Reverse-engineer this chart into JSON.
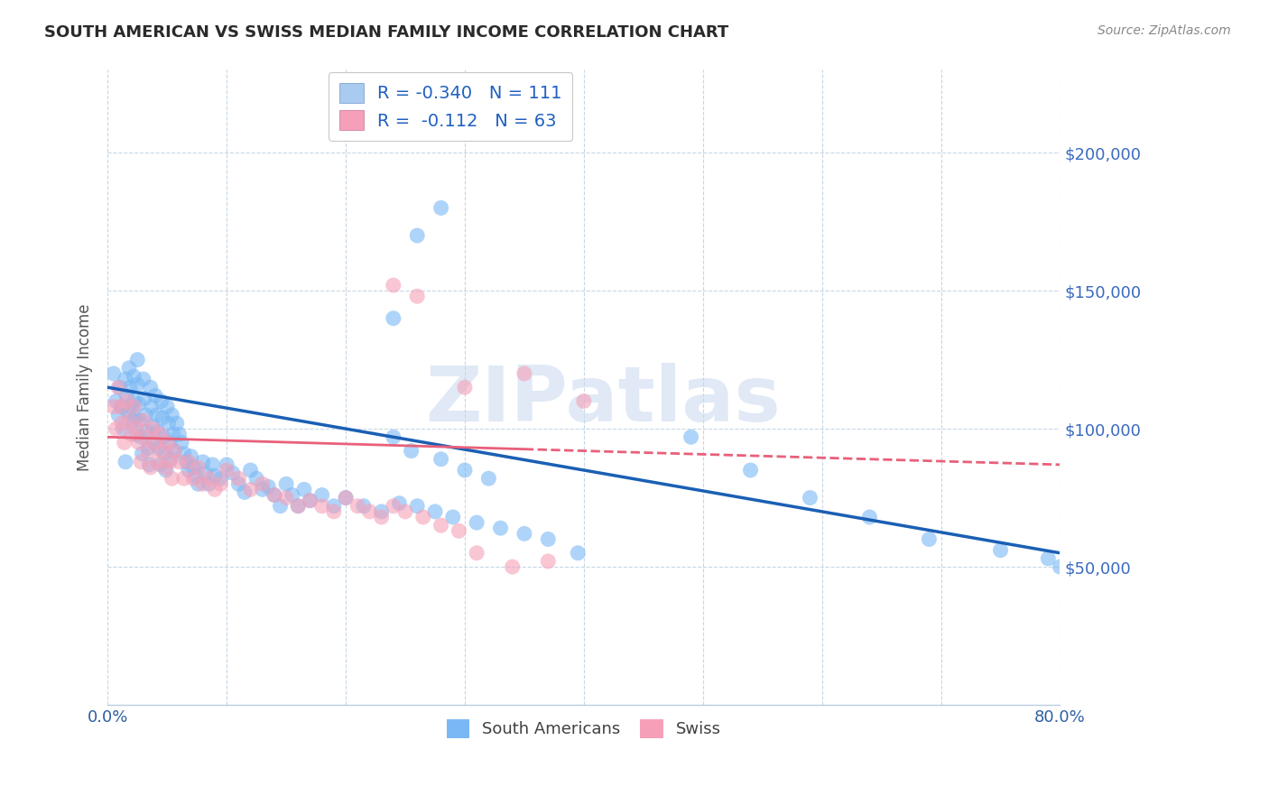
{
  "title": "SOUTH AMERICAN VS SWISS MEDIAN FAMILY INCOME CORRELATION CHART",
  "source": "Source: ZipAtlas.com",
  "ylabel": "Median Family Income",
  "watermark": "ZIPatlas",
  "group1_label": "South Americans",
  "group2_label": "Swiss",
  "group1_color": "#7ab8f5",
  "group2_color": "#f5a0b8",
  "trend1_color": "#1a5fb4",
  "trend2_color": "#e8607a",
  "background_color": "#ffffff",
  "xlim": [
    0.0,
    0.8
  ],
  "ylim": [
    0,
    230000
  ],
  "yticks": [
    50000,
    100000,
    150000,
    200000
  ],
  "ytick_labels": [
    "$50,000",
    "$100,000",
    "$150,000",
    "$200,000"
  ],
  "xtick_labels_show": [
    "0.0%",
    "80.0%"
  ],
  "legend1_label": "R = -0.340   N = 111",
  "legend2_label": "R =  -0.112   N = 63",
  "legend1_color": "#aacbf0",
  "legend2_color": "#f5a0b8",
  "trend1_y0": 115000,
  "trend1_y1": 55000,
  "trend2_y0": 97000,
  "trend2_y1": 87000,
  "trend2_solid_x1": 0.35,
  "group1_x": [
    0.005,
    0.007,
    0.009,
    0.01,
    0.012,
    0.013,
    0.015,
    0.016,
    0.017,
    0.018,
    0.019,
    0.02,
    0.021,
    0.022,
    0.022,
    0.023,
    0.024,
    0.025,
    0.025,
    0.026,
    0.027,
    0.028,
    0.029,
    0.03,
    0.031,
    0.032,
    0.033,
    0.034,
    0.035,
    0.036,
    0.037,
    0.038,
    0.039,
    0.04,
    0.041,
    0.042,
    0.043,
    0.044,
    0.045,
    0.046,
    0.047,
    0.048,
    0.049,
    0.05,
    0.051,
    0.052,
    0.053,
    0.054,
    0.055,
    0.056,
    0.058,
    0.06,
    0.062,
    0.064,
    0.066,
    0.068,
    0.07,
    0.072,
    0.074,
    0.076,
    0.08,
    0.082,
    0.085,
    0.088,
    0.09,
    0.095,
    0.1,
    0.105,
    0.11,
    0.115,
    0.12,
    0.125,
    0.13,
    0.135,
    0.14,
    0.145,
    0.15,
    0.155,
    0.16,
    0.165,
    0.17,
    0.18,
    0.19,
    0.2,
    0.215,
    0.23,
    0.245,
    0.26,
    0.275,
    0.29,
    0.31,
    0.33,
    0.35,
    0.37,
    0.395,
    0.24,
    0.255,
    0.28,
    0.3,
    0.32,
    0.24,
    0.26,
    0.28,
    0.49,
    0.54,
    0.59,
    0.64,
    0.69,
    0.75,
    0.79,
    0.8,
    0.015
  ],
  "group1_y": [
    120000,
    110000,
    105000,
    115000,
    108000,
    100000,
    118000,
    112000,
    106000,
    122000,
    115000,
    108000,
    103000,
    119000,
    110000,
    104000,
    98000,
    125000,
    116000,
    109000,
    103000,
    97000,
    91000,
    118000,
    111000,
    105000,
    99000,
    93000,
    87000,
    115000,
    108000,
    101000,
    95000,
    112000,
    105000,
    99000,
    93000,
    87000,
    110000,
    104000,
    97000,
    91000,
    85000,
    108000,
    102000,
    95000,
    89000,
    105000,
    98000,
    92000,
    102000,
    98000,
    95000,
    91000,
    88000,
    85000,
    90000,
    86000,
    83000,
    80000,
    88000,
    84000,
    80000,
    87000,
    83000,
    82000,
    87000,
    84000,
    80000,
    77000,
    85000,
    82000,
    78000,
    79000,
    76000,
    72000,
    80000,
    76000,
    72000,
    78000,
    74000,
    76000,
    72000,
    75000,
    72000,
    70000,
    73000,
    72000,
    70000,
    68000,
    66000,
    64000,
    62000,
    60000,
    55000,
    97000,
    92000,
    89000,
    85000,
    82000,
    140000,
    170000,
    180000,
    97000,
    85000,
    75000,
    68000,
    60000,
    56000,
    53000,
    50000,
    88000
  ],
  "group2_x": [
    0.005,
    0.007,
    0.009,
    0.011,
    0.012,
    0.014,
    0.016,
    0.018,
    0.02,
    0.022,
    0.024,
    0.026,
    0.028,
    0.03,
    0.032,
    0.034,
    0.036,
    0.038,
    0.04,
    0.042,
    0.044,
    0.046,
    0.048,
    0.05,
    0.052,
    0.054,
    0.056,
    0.06,
    0.064,
    0.068,
    0.072,
    0.076,
    0.08,
    0.085,
    0.09,
    0.095,
    0.1,
    0.11,
    0.12,
    0.13,
    0.14,
    0.15,
    0.16,
    0.17,
    0.18,
    0.19,
    0.2,
    0.21,
    0.22,
    0.23,
    0.24,
    0.25,
    0.265,
    0.28,
    0.295,
    0.31,
    0.34,
    0.37,
    0.24,
    0.26,
    0.3,
    0.35,
    0.4
  ],
  "group2_y": [
    108000,
    100000,
    115000,
    108000,
    102000,
    95000,
    110000,
    103000,
    98000,
    108000,
    100000,
    95000,
    88000,
    103000,
    97000,
    92000,
    86000,
    100000,
    95000,
    88000,
    98000,
    92000,
    86000,
    95000,
    88000,
    82000,
    92000,
    88000,
    82000,
    88000,
    82000,
    86000,
    80000,
    82000,
    78000,
    80000,
    85000,
    82000,
    78000,
    80000,
    76000,
    75000,
    72000,
    74000,
    72000,
    70000,
    75000,
    72000,
    70000,
    68000,
    72000,
    70000,
    68000,
    65000,
    63000,
    55000,
    50000,
    52000,
    152000,
    148000,
    115000,
    120000,
    110000
  ]
}
